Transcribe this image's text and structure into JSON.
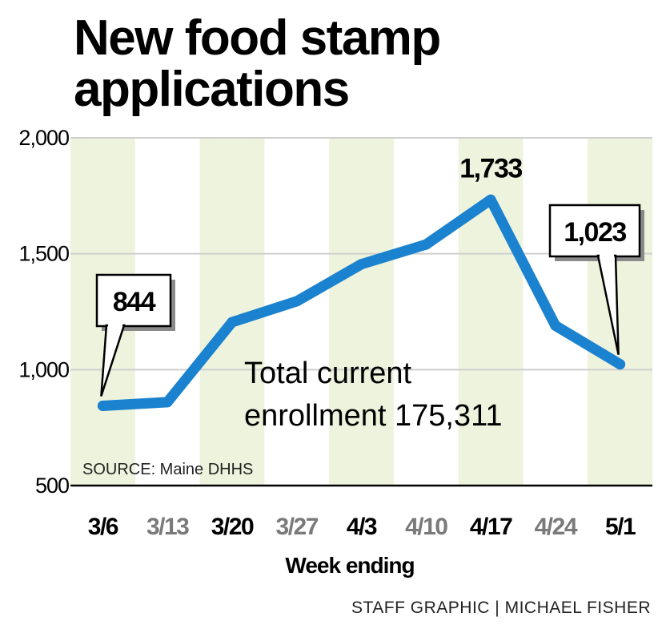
{
  "title": "New food stamp applications",
  "annotation_line1": "Total current",
  "annotation_line2": "enrollment 175,311",
  "source": "SOURCE: Maine DHHS",
  "credit": "STAFF GRAPHIC | MICHAEL FISHER",
  "colors": {
    "line": "#1a82cf",
    "band": "#eef3dd",
    "label_bold": "#000000",
    "label_muted": "#7a7a7a",
    "grid": "#cfcfcf"
  },
  "chart_data": {
    "type": "line",
    "title": "New food stamp applications",
    "xlabel": "Week ending",
    "ylabel": "",
    "categories": [
      "3/6",
      "3/13",
      "3/20",
      "3/27",
      "4/3",
      "4/10",
      "4/17",
      "4/24",
      "5/1"
    ],
    "highlighted_categories": [
      "3/6",
      "3/20",
      "4/3",
      "4/17",
      "5/1"
    ],
    "values": [
      844,
      860,
      1205,
      1295,
      1455,
      1540,
      1733,
      1190,
      1023
    ],
    "ylim": [
      500,
      2000
    ],
    "yticks": [
      500,
      1000,
      1500,
      2000
    ],
    "ytick_labels": [
      "500",
      "1,000",
      "1,500",
      "2,000"
    ],
    "grid": true,
    "data_labels": [
      {
        "category": "3/6",
        "text": "844",
        "boxed": true
      },
      {
        "category": "4/17",
        "text": "1,733",
        "boxed": false
      },
      {
        "category": "5/1",
        "text": "1,023",
        "boxed": true
      }
    ]
  }
}
